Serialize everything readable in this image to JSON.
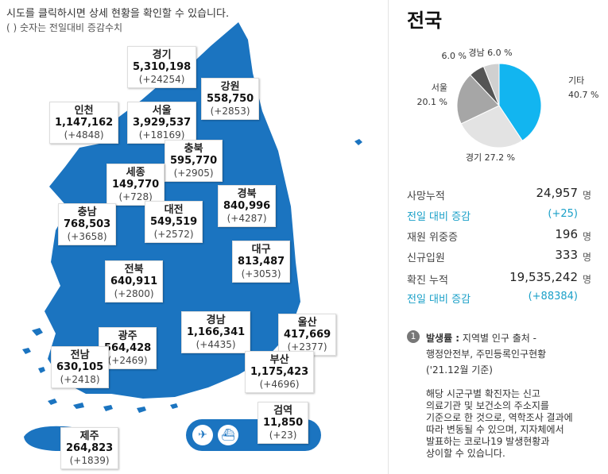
{
  "notice": {
    "line1": "시도를 클릭하시면 상세 현황을 확인할 수 있습니다.",
    "line2": "( ) 숫자는 전일대비 증감수치"
  },
  "regions": {
    "gyeonggi": {
      "name": "경기",
      "total": "5,310,198",
      "diff": "(+24254)"
    },
    "gangwon": {
      "name": "강원",
      "total": "558,750",
      "diff": "(+2853)"
    },
    "incheon": {
      "name": "인천",
      "total": "1,147,162",
      "diff": "(+4848)"
    },
    "seoul": {
      "name": "서울",
      "total": "3,929,537",
      "diff": "(+18169)"
    },
    "chungbuk": {
      "name": "충북",
      "total": "595,770",
      "diff": "(+2905)"
    },
    "sejong": {
      "name": "세종",
      "total": "149,770",
      "diff": "(+728)"
    },
    "gyeongbuk": {
      "name": "경북",
      "total": "840,996",
      "diff": "(+4287)"
    },
    "chungnam": {
      "name": "충남",
      "total": "768,503",
      "diff": "(+3658)"
    },
    "daejeon": {
      "name": "대전",
      "total": "549,519",
      "diff": "(+2572)"
    },
    "daegu": {
      "name": "대구",
      "total": "813,487",
      "diff": "(+3053)"
    },
    "jeonbuk": {
      "name": "전북",
      "total": "640,911",
      "diff": "(+2800)"
    },
    "gyeongnam": {
      "name": "경남",
      "total": "1,166,341",
      "diff": "(+4435)"
    },
    "ulsan": {
      "name": "울산",
      "total": "417,669",
      "diff": "(+2377)"
    },
    "gwangju": {
      "name": "광주",
      "total": "564,428",
      "diff": "(+2469)"
    },
    "jeonnam": {
      "name": "전남",
      "total": "630,105",
      "diff": "(+2418)"
    },
    "busan": {
      "name": "부산",
      "total": "1,175,423",
      "diff": "(+4696)"
    },
    "jeju": {
      "name": "제주",
      "total": "264,823",
      "diff": "(+1839)"
    },
    "quarantine": {
      "name": "검역",
      "total": "11,850",
      "diff": "(+23)"
    }
  },
  "map_color": "#1b74c0",
  "quarantine_icons": [
    "airplane-icon",
    "ship-icon"
  ],
  "national": {
    "title": "전국",
    "chart_data": {
      "type": "pie",
      "slices": [
        {
          "label": "기타",
          "value": 40.7,
          "text": "40.7 %",
          "color": "#12b5f0"
        },
        {
          "label": "경기",
          "value": 27.2,
          "text": "27.2 %",
          "color": "#e3e3e3"
        },
        {
          "label": "서울",
          "value": 20.1,
          "text": "20.1 %",
          "color": "#a6a6a6"
        },
        {
          "label": "",
          "value": 6.0,
          "text": "6.0 %",
          "color": "#555555"
        },
        {
          "label": "경남",
          "value": 6.0,
          "text": "6.0 %",
          "color": "#d0d0d0"
        }
      ]
    },
    "stats": [
      {
        "label": "사망누적",
        "value": "24,957",
        "unit": "명",
        "highlight": false
      },
      {
        "label": "전일 대비 증감",
        "value": "(+25)",
        "unit": "",
        "highlight": true
      },
      {
        "label": "재원 위중증",
        "value": "196",
        "unit": "명",
        "highlight": false
      },
      {
        "label": "신규입원",
        "value": "333",
        "unit": "명",
        "highlight": false
      },
      {
        "label": "확진 누적",
        "value": "19,535,242",
        "unit": "명",
        "highlight": false
      },
      {
        "label": "전일 대비 증감",
        "value": "(+88384)",
        "unit": "",
        "highlight": true
      }
    ],
    "note_number": "1",
    "note_title": "발생률 :",
    "note_line1": " 지역별 인구 출처 -",
    "note_line2": "행정안전부, 주민등록인구현황",
    "note_line3": "('21.12월 기준)",
    "note_paragraph": [
      "해당 시군구별 확진자는 신고",
      "의료기관 및 보건소의 주소지를",
      "기준으로 한 것으로, 역학조사 결과에",
      "따라 변동될 수 있으며, 지자체에서",
      "발표하는 코로나19 발생현황과",
      "상이할 수 있습니다."
    ]
  }
}
